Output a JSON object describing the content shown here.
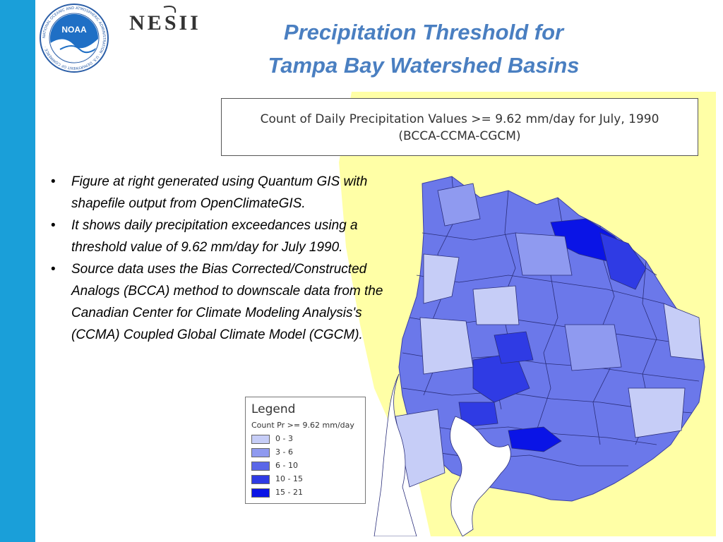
{
  "colors": {
    "sidebar": "#1a9fd9",
    "title": "#4a7fc1",
    "background_land": "#ffffa6",
    "water": "#ffffff",
    "border": "#555555"
  },
  "title": {
    "line1": "Precipitation Threshold for",
    "line2": "Tampa Bay Watershed Basins"
  },
  "logos": {
    "noaa_center": "NOAA",
    "noaa_ring": "NATIONAL OCEANIC AND ATMOSPHERIC ADMINISTRATION · U.S. DEPARTMENT OF COMMERCE ·",
    "nesii": "NESII"
  },
  "map": {
    "title_line1": "Count of Daily Precipitation Values >= 9.62 mm/day for July, 1990",
    "title_line2": "(BCCA-CCMA-CGCM)"
  },
  "bullets": [
    "Figure at right generated using Quantum GIS with shapefile output from OpenClimateGIS.",
    "It shows daily precipitation exceedances using a threshold value of 9.62 mm/day for July 1990.",
    "Source data uses the Bias Corrected/Constructed Analogs (BCCA) method to downscale data from the Canadian Center for Climate Modeling Analysis's (CCMA) Coupled Global Climate Model (CGCM)."
  ],
  "legend": {
    "title": "Legend",
    "subtitle": "Count Pr >= 9.62 mm/day",
    "items": [
      {
        "label": "0 - 3",
        "color": "#c6cdf7"
      },
      {
        "label": "3 - 6",
        "color": "#8f9af0"
      },
      {
        "label": "6 - 10",
        "color": "#5a67e8"
      },
      {
        "label": "10 - 15",
        "color": "#2f3be4"
      },
      {
        "label": "15 - 21",
        "color": "#0a14e6"
      }
    ]
  }
}
